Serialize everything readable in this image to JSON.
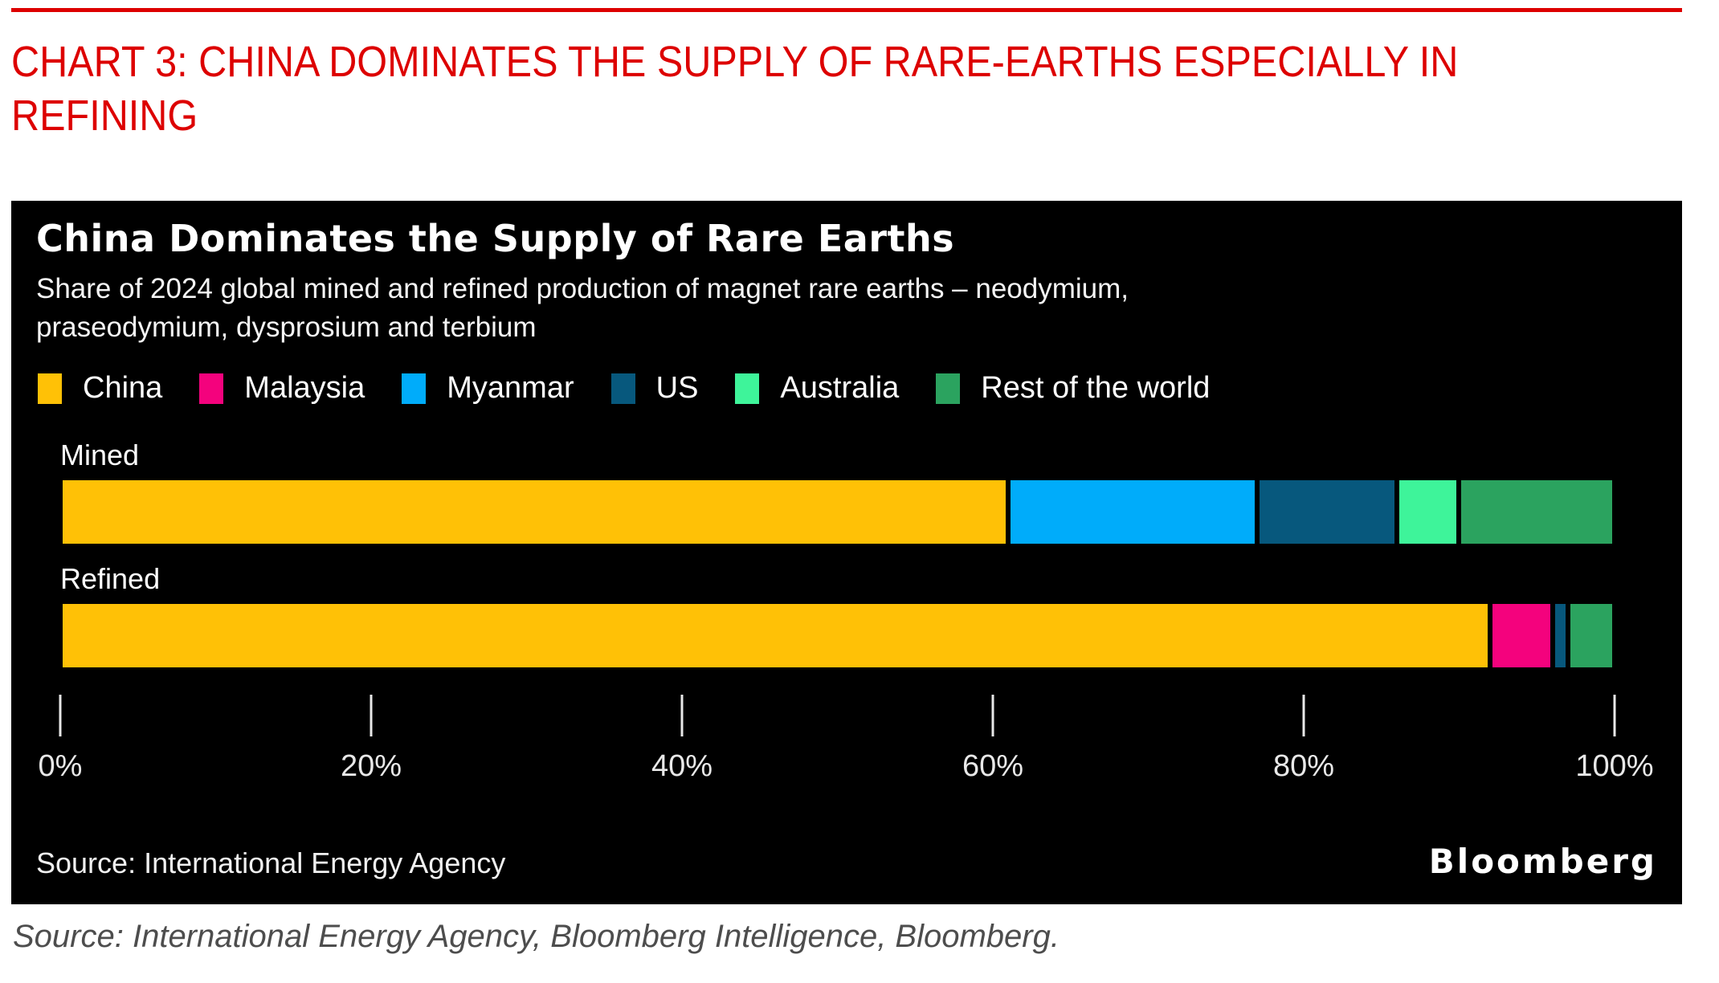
{
  "page": {
    "headline_lines": [
      "CHART 3: CHINA DOMINATES THE SUPPLY OF RARE-EARTHS ESPECIALLY IN",
      "REFINING"
    ],
    "headline_color": "#DD0000",
    "top_rule_color": "#DD0000",
    "footer_source": "Source: International Energy Agency, Bloomberg Intelligence, Bloomberg."
  },
  "panel": {
    "title": "China Dominates the Supply of Rare Earths",
    "subtitle_lines": [
      "Share of 2024 global mined and refined production of magnet rare earths – neodymium,",
      "praseodymium, dysprosium and terbium"
    ],
    "source": "Source: International Energy Agency",
    "logo": "Bloomberg",
    "background": "#000000"
  },
  "chart_data": {
    "type": "bar",
    "orientation": "horizontal-stacked",
    "title": "China Dominates the Supply of Rare Earths",
    "subtitle": "Share of 2024 global mined and refined production of magnet rare earths – neodymium, praseodymium, dysprosium and terbium",
    "categories": [
      "Mined",
      "Refined"
    ],
    "series": [
      {
        "name": "China",
        "color": "#FFC106",
        "values": [
          61,
          92
        ]
      },
      {
        "name": "Malaysia",
        "color": "#F4027D",
        "values": [
          0,
          4
        ]
      },
      {
        "name": "Myanmar",
        "color": "#00ACFA",
        "values": [
          16,
          0
        ]
      },
      {
        "name": "US",
        "color": "#07587D",
        "values": [
          9,
          1
        ]
      },
      {
        "name": "Australia",
        "color": "#3EF49A",
        "values": [
          4,
          0
        ]
      },
      {
        "name": "Rest of the world",
        "color": "#2BA35F",
        "values": [
          10,
          3
        ]
      }
    ],
    "xlim": [
      0,
      100
    ],
    "x_ticks": [
      "0%",
      "20%",
      "40%",
      "60%",
      "80%",
      "100%"
    ],
    "x_tick_values": [
      0,
      20,
      40,
      60,
      80,
      100
    ],
    "unit": "%",
    "legend_position": "top",
    "grid": false,
    "source": "Source: International Energy Agency",
    "credit": "Bloomberg"
  }
}
